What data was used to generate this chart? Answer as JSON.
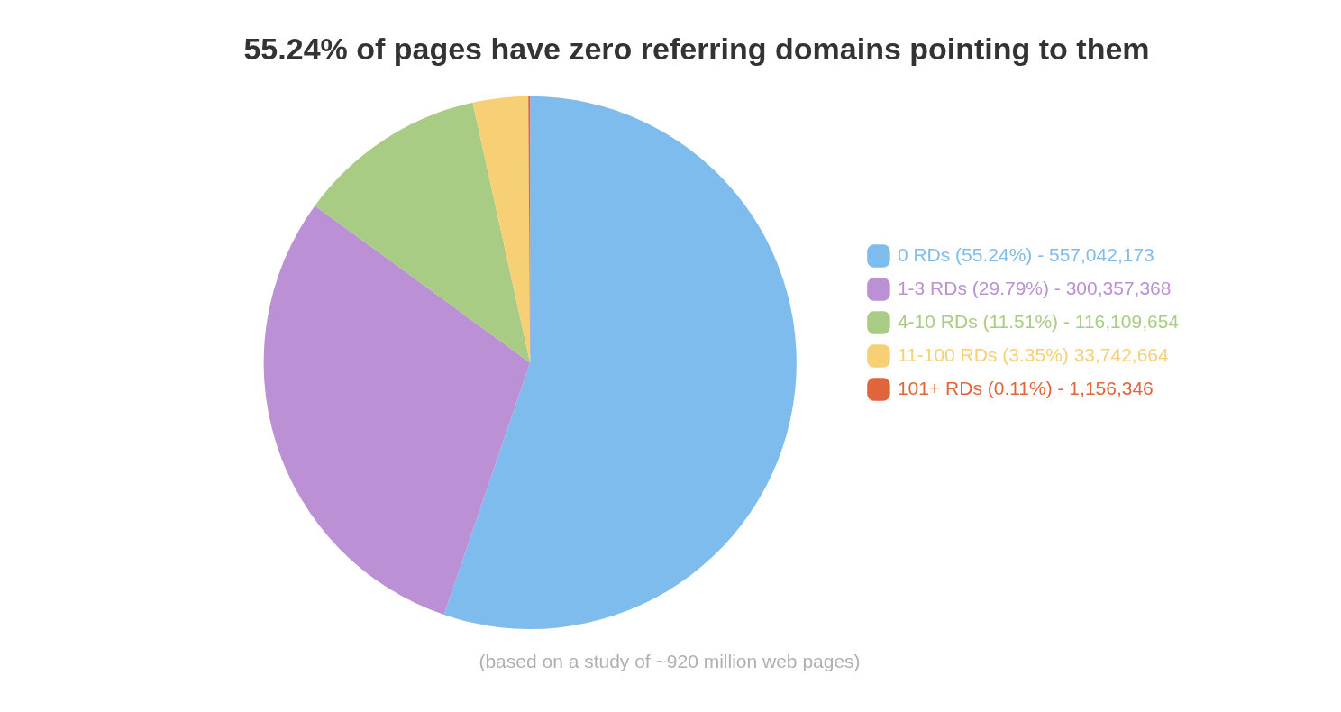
{
  "chart_data": {
    "type": "pie",
    "title": "55.24% of pages have zero referring domains pointing to them",
    "categories": [
      "0 RDs (55.24%) - 557,042,173",
      "1-3 RDs (29.79%) - 300,357,368",
      "4-10 RDs (11.51%) - 116,109,654",
      "11-100 RDs (3.35%) 33,742,664",
      "101+ RDs (0.11%) - 1,156,346"
    ],
    "values": [
      55.24,
      29.79,
      11.51,
      3.35,
      0.11
    ],
    "colors": [
      "#7fbcee",
      "#bb90d4",
      "#a8cc84",
      "#f7cf75",
      "#e0653c"
    ],
    "legend": "right",
    "annotations": [
      "(based on a study of ~920 million web pages)"
    ]
  }
}
